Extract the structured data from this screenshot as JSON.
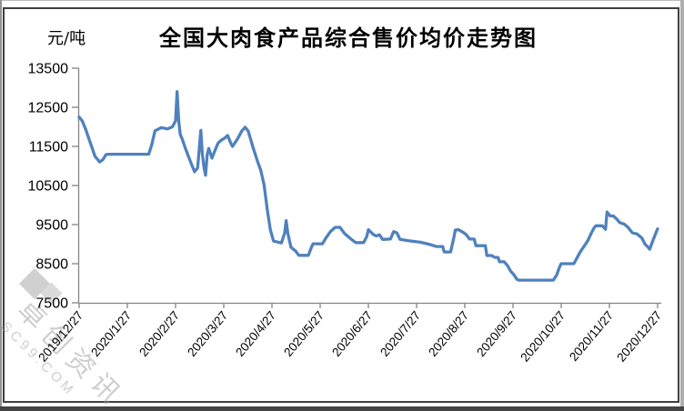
{
  "chart": {
    "panel": "price-trend-panel"
  },
  "watermark": {
    "cjk": "卓创资讯",
    "latin": "SC99.COM"
  },
  "chart_data": {
    "type": "line",
    "title": "全国大肉食产品综合售价均价走势图",
    "ylabel": "元/吨",
    "xlabel": "",
    "ylim": [
      7500,
      13500
    ],
    "y_ticks": [
      13500,
      12500,
      11500,
      10500,
      9500,
      8500,
      7500
    ],
    "x_tick_labels": [
      "2019/12/27",
      "2020/1/27",
      "2020/2/27",
      "2020/3/27",
      "2020/4/27",
      "2020/5/27",
      "2020/6/27",
      "2020/7/27",
      "2020/8/27",
      "2020/9/27",
      "2020/10/27",
      "2020/11/27",
      "2020/12/27"
    ],
    "x_unit": "days since 2019/12/27",
    "x_range": [
      0,
      366
    ],
    "grid": false,
    "legend": "none",
    "line_color": "#4F81BD",
    "axis_color": "#848484",
    "series": [
      {
        "name": "综合售价均价",
        "points": [
          [
            0,
            12250
          ],
          [
            2,
            12150
          ],
          [
            4,
            11950
          ],
          [
            7,
            11600
          ],
          [
            10,
            11250
          ],
          [
            13,
            11100
          ],
          [
            15,
            11160
          ],
          [
            17,
            11290
          ],
          [
            19,
            11300
          ],
          [
            44,
            11300
          ],
          [
            46,
            11550
          ],
          [
            48,
            11900
          ],
          [
            52,
            11980
          ],
          [
            56,
            11950
          ],
          [
            59,
            12000
          ],
          [
            61,
            12150
          ],
          [
            62,
            12900
          ],
          [
            63,
            12150
          ],
          [
            64,
            11800
          ],
          [
            65,
            11710
          ],
          [
            67,
            11480
          ],
          [
            69,
            11260
          ],
          [
            71,
            11050
          ],
          [
            73,
            10850
          ],
          [
            75,
            10950
          ],
          [
            76,
            11450
          ],
          [
            77,
            11910
          ],
          [
            78,
            11300
          ],
          [
            79,
            10950
          ],
          [
            80,
            10760
          ],
          [
            81,
            11290
          ],
          [
            82,
            11450
          ],
          [
            84,
            11200
          ],
          [
            86,
            11400
          ],
          [
            88,
            11590
          ],
          [
            90,
            11660
          ],
          [
            92,
            11710
          ],
          [
            94,
            11780
          ],
          [
            96,
            11580
          ],
          [
            97,
            11500
          ],
          [
            100,
            11680
          ],
          [
            103,
            11900
          ],
          [
            105,
            11990
          ],
          [
            107,
            11890
          ],
          [
            110,
            11480
          ],
          [
            113,
            11100
          ],
          [
            115,
            10880
          ],
          [
            117,
            10520
          ],
          [
            119,
            9890
          ],
          [
            121,
            9360
          ],
          [
            123,
            9080
          ],
          [
            128,
            9030
          ],
          [
            130,
            9280
          ],
          [
            131,
            9600
          ],
          [
            132,
            9280
          ],
          [
            134,
            8920
          ],
          [
            137,
            8820
          ],
          [
            139,
            8715
          ],
          [
            145,
            8715
          ],
          [
            147,
            8920
          ],
          [
            148,
            9010
          ],
          [
            154,
            9010
          ],
          [
            156,
            9150
          ],
          [
            159,
            9320
          ],
          [
            162,
            9430
          ],
          [
            165,
            9430
          ],
          [
            168,
            9270
          ],
          [
            172,
            9130
          ],
          [
            175,
            9040
          ],
          [
            180,
            9040
          ],
          [
            182,
            9200
          ],
          [
            183,
            9370
          ],
          [
            185,
            9290
          ],
          [
            186,
            9250
          ],
          [
            188,
            9210
          ],
          [
            190,
            9240
          ],
          [
            192,
            9120
          ],
          [
            197,
            9130
          ],
          [
            199,
            9320
          ],
          [
            201,
            9290
          ],
          [
            203,
            9120
          ],
          [
            210,
            9080
          ],
          [
            216,
            9050
          ],
          [
            222,
            8990
          ],
          [
            226,
            8940
          ],
          [
            230,
            8940
          ],
          [
            231,
            8800
          ],
          [
            235,
            8800
          ],
          [
            237,
            9150
          ],
          [
            238,
            9360
          ],
          [
            240,
            9370
          ],
          [
            243,
            9300
          ],
          [
            245,
            9240
          ],
          [
            247,
            9130
          ],
          [
            250,
            9130
          ],
          [
            251,
            8960
          ],
          [
            257,
            8960
          ],
          [
            258,
            8710
          ],
          [
            261,
            8710
          ],
          [
            263,
            8660
          ],
          [
            265,
            8660
          ],
          [
            266,
            8550
          ],
          [
            269,
            8550
          ],
          [
            271,
            8450
          ],
          [
            273,
            8310
          ],
          [
            275,
            8220
          ],
          [
            277,
            8100
          ],
          [
            278,
            8080
          ],
          [
            300,
            8080
          ],
          [
            302,
            8200
          ],
          [
            304,
            8420
          ],
          [
            305,
            8500
          ],
          [
            313,
            8500
          ],
          [
            315,
            8650
          ],
          [
            317,
            8800
          ],
          [
            320,
            8980
          ],
          [
            322,
            9100
          ],
          [
            324,
            9280
          ],
          [
            326,
            9430
          ],
          [
            327,
            9470
          ],
          [
            331,
            9470
          ],
          [
            333,
            9380
          ],
          [
            334,
            9820
          ],
          [
            336,
            9720
          ],
          [
            338,
            9720
          ],
          [
            340,
            9650
          ],
          [
            342,
            9550
          ],
          [
            345,
            9510
          ],
          [
            347,
            9440
          ],
          [
            350,
            9290
          ],
          [
            353,
            9260
          ],
          [
            356,
            9160
          ],
          [
            358,
            9000
          ],
          [
            360,
            8920
          ],
          [
            361,
            8870
          ],
          [
            363,
            9090
          ],
          [
            365,
            9300
          ],
          [
            366,
            9390
          ]
        ]
      }
    ]
  }
}
